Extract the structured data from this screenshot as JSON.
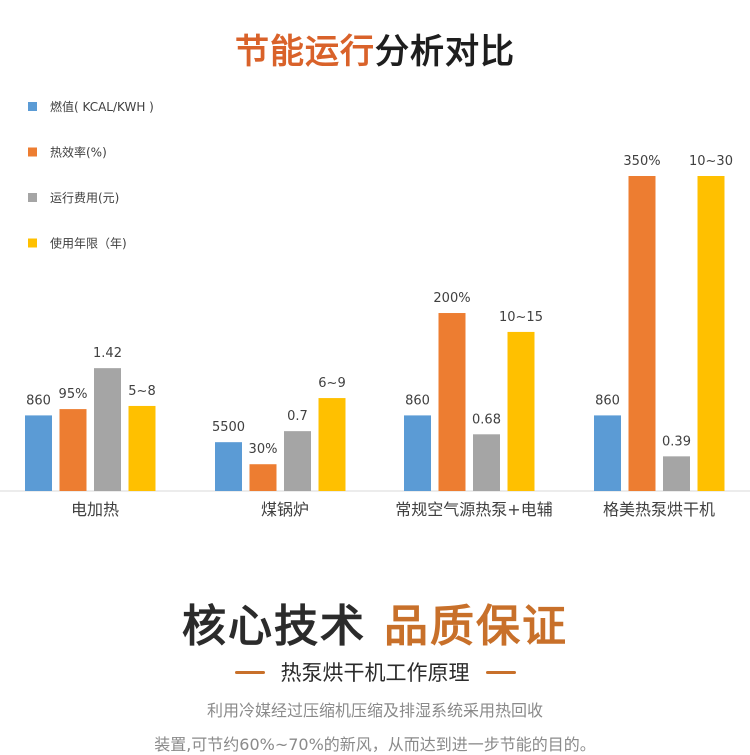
{
  "header": {
    "title_accent": "节能运行",
    "title_rest": "分析对比"
  },
  "chart_data": {
    "type": "bar",
    "categories": [
      "电加热",
      "煤锅炉",
      "常规空气源热泵+电辅",
      "格美热泵烘干机"
    ],
    "series": [
      {
        "name": "燃值( KCAL/KWH )",
        "color": "#5b9bd5",
        "labels": [
          "860",
          "5500",
          "860",
          "860"
        ]
      },
      {
        "name": "热效率(%)",
        "color": "#ed7d31",
        "labels": [
          "95%",
          "30%",
          "200%",
          "350%"
        ]
      },
      {
        "name": "运行费用(元)",
        "color": "#a5a5a5",
        "labels": [
          "1.42",
          "0.7",
          "0.68",
          "0.39"
        ]
      },
      {
        "name": "使用年限（年)",
        "color": "#ffc000",
        "labels": [
          "5~8",
          "6~9",
          "10~15",
          "10~30"
        ]
      }
    ],
    "relative_levels": [
      [
        0.24,
        0.26,
        0.39,
        0.27
      ],
      [
        0.155,
        0.085,
        0.19,
        0.295
      ],
      [
        0.24,
        0.565,
        0.18,
        0.505
      ],
      [
        0.24,
        1.0,
        0.11,
        1.0
      ]
    ],
    "legend": "top-left",
    "grid": false
  },
  "section": {
    "title_dark": "核心技术",
    "title_brand": "品质保证",
    "subtitle": "热泵烘干机工作原理",
    "desc_line1": "利用冷媒经过压缩机压缩及排湿系统采用热回收",
    "desc_line2": "装置,可节约60%~70%的新风，从而达到进一步节能的目的。"
  }
}
